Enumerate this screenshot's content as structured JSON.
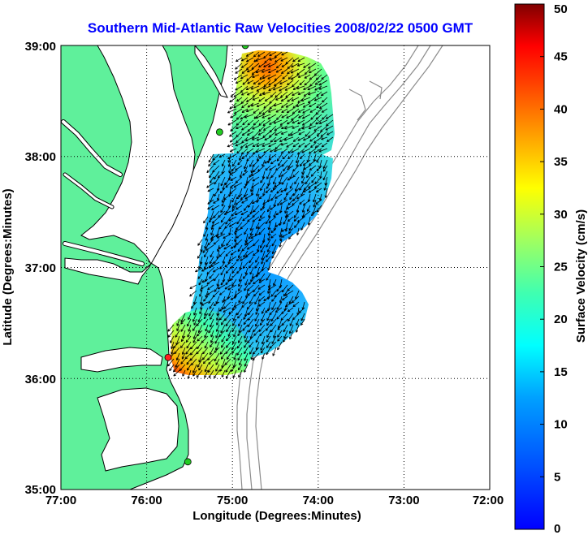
{
  "title": "Southern Mid-Atlantic Raw Velocities 2008/02/22 0500 GMT",
  "xlabel": "Longitude (Degrees:Minutes)",
  "ylabel": "Latitude (Degrees:Minutes)",
  "colorbar": {
    "label": "Surface Velocity (cm/s)",
    "min": 0,
    "max": 50,
    "ticks": [
      "0",
      "5",
      "10",
      "15",
      "20",
      "25",
      "30",
      "35",
      "40",
      "45",
      "50"
    ],
    "colormap": "jet"
  },
  "map": {
    "lon_range": [
      -77,
      -72
    ],
    "lat_range": [
      35,
      39
    ],
    "x_ticks": [
      "77:00",
      "76:00",
      "75:00",
      "74:00",
      "73:00",
      "72:00"
    ],
    "y_ticks": [
      "39:00",
      "38:00",
      "37:00",
      "36:00",
      "35:00"
    ],
    "grid": "dotted",
    "land_color": "#5ff09b",
    "bathymetry_color": "#8c8c8c",
    "velocity_field_regions": [
      {
        "name": "northern-patch",
        "speed_cm_s": 18
      },
      {
        "name": "central-patch",
        "speed_cm_s": 9
      },
      {
        "name": "southern-patch",
        "speed_cm_s": 22
      }
    ],
    "stations": [
      {
        "name": "site-north",
        "lon": -74.85,
        "lat": 39.0,
        "color": "#22cc22"
      },
      {
        "name": "site-mid",
        "lon": -75.15,
        "lat": 38.22,
        "color": "#22cc22"
      },
      {
        "name": "site-south-red",
        "lon": -75.75,
        "lat": 36.19,
        "color": "#ff2020"
      },
      {
        "name": "site-hatteras",
        "lon": -75.52,
        "lat": 35.25,
        "color": "#22cc22"
      }
    ]
  }
}
